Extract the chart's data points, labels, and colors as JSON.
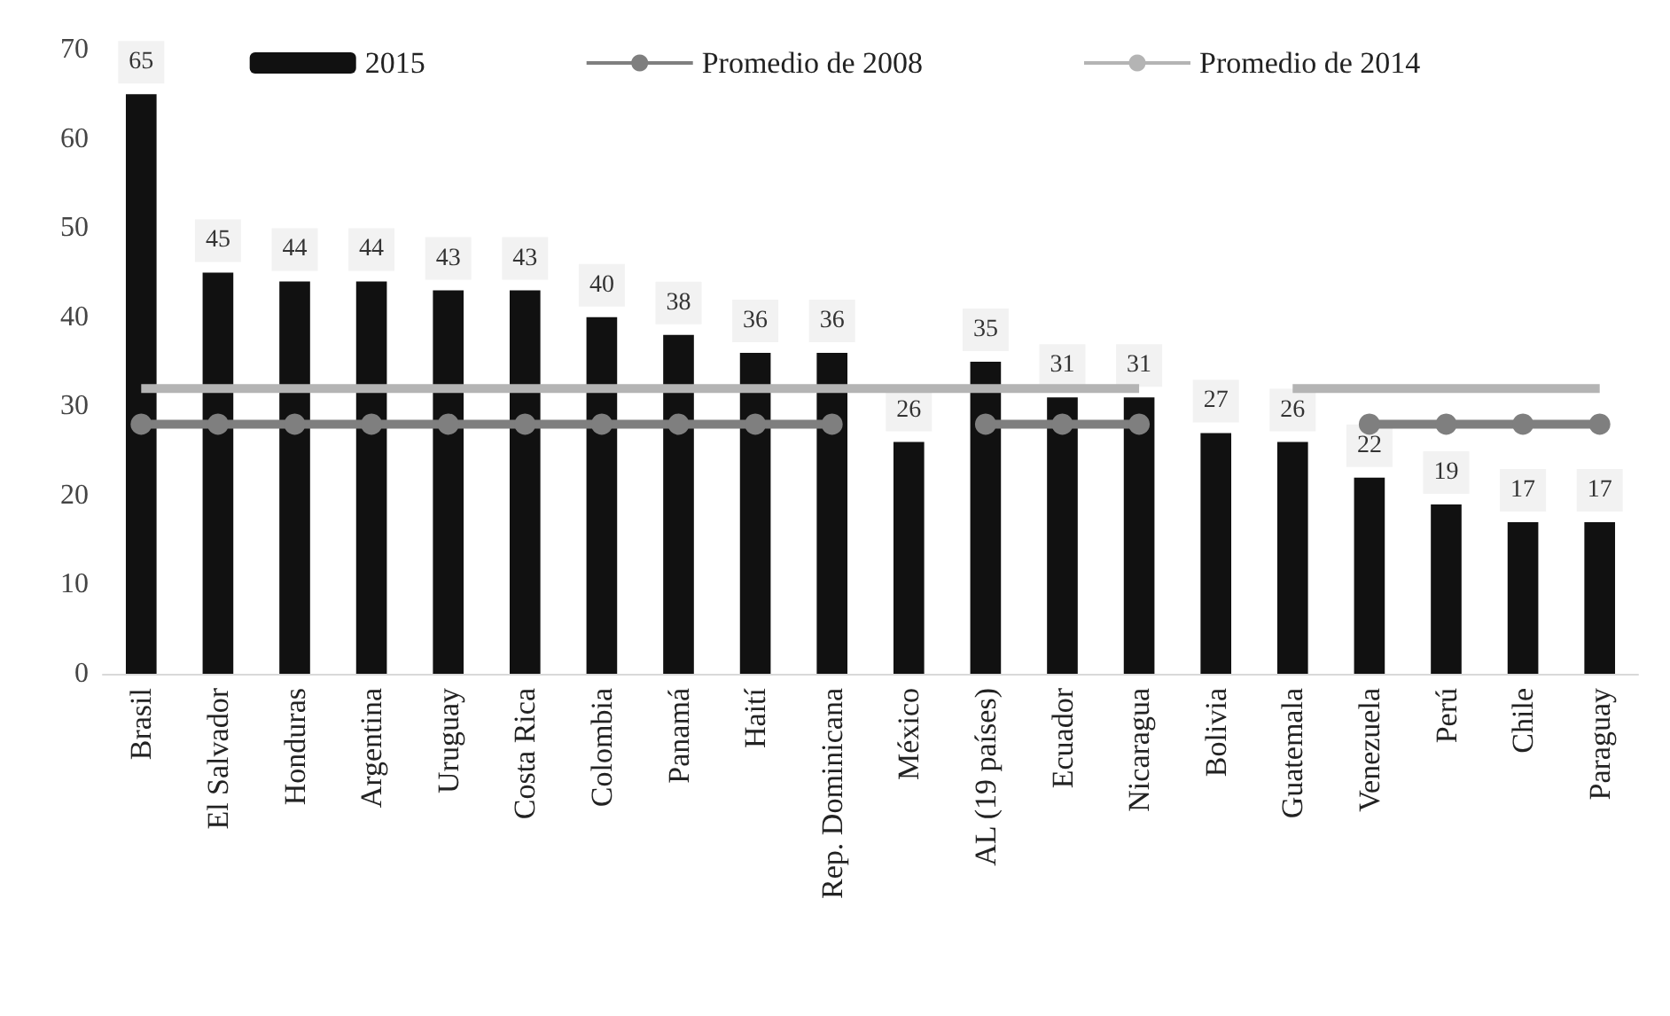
{
  "chart_data": {
    "type": "bar",
    "categories": [
      "Brasil",
      "El Salvador",
      "Honduras",
      "Argentina",
      "Uruguay",
      "Costa Rica",
      "Colombia",
      "Panamá",
      "Haití",
      "Rep. Dominicana",
      "México",
      "AL (19 países)",
      "Ecuador",
      "Nicaragua",
      "Bolivia",
      "Guatemala",
      "Venezuela",
      "Perú",
      "Chile",
      "Paraguay"
    ],
    "series": [
      {
        "name": "2015",
        "color": "#111111",
        "values": [
          65,
          45,
          44,
          44,
          43,
          43,
          40,
          38,
          36,
          36,
          26,
          35,
          31,
          31,
          27,
          26,
          22,
          19,
          17,
          17
        ],
        "value_labels": [
          "65",
          "45",
          "44",
          "44",
          "43",
          "43",
          "40",
          "38",
          "36",
          "36",
          "26",
          "35",
          "31",
          "31",
          "27",
          "26",
          "22",
          "19",
          "17",
          "17"
        ]
      },
      {
        "name": "Promedio de 2008",
        "type": "line",
        "color": "#7f7f7f",
        "marker": "circle",
        "values": [
          28,
          28,
          28,
          28,
          28,
          28,
          28,
          28,
          28,
          28,
          null,
          28,
          28,
          28,
          null,
          null,
          28,
          28,
          28,
          28
        ]
      },
      {
        "name": "Promedio de 2014",
        "type": "line",
        "color": "#b4b4b4",
        "marker": "none",
        "values": [
          32,
          32,
          32,
          32,
          32,
          32,
          32,
          32,
          32,
          32,
          32,
          32,
          32,
          32,
          null,
          32,
          32,
          32,
          32,
          32
        ]
      }
    ],
    "ylim": [
      0,
      70
    ],
    "yticks": [
      0,
      10,
      20,
      30,
      40,
      50,
      60,
      70
    ],
    "grid": false,
    "legend": "top"
  }
}
